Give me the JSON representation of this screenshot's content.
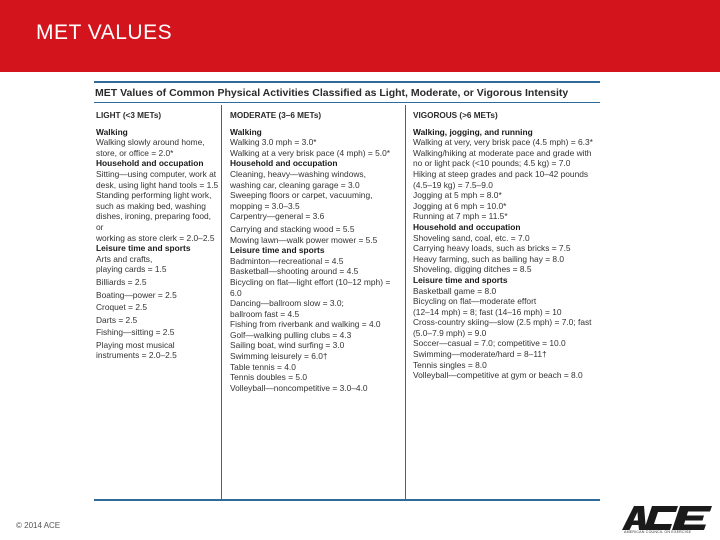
{
  "slide": {
    "title": "MET VALUES",
    "copyright": "© 2014 ACE",
    "accent_color": "#d3141d",
    "table_rule_color": "#2f6b9a"
  },
  "logo": {
    "text": "ACE",
    "tagline": "AMERICAN COUNCIL ON EXERCISE"
  },
  "table": {
    "caption": "MET Values of Common Physical Activities Classified as Light, Moderate, or Vigorous Intensity",
    "light": {
      "header": "LIGHT (<3 METs)",
      "lines": [
        {
          "kind": "section",
          "text": "Walking"
        },
        {
          "kind": "entry",
          "text": "Walking slowly around home,"
        },
        {
          "kind": "entry",
          "text": "store, or office = 2.0*"
        },
        {
          "kind": "section",
          "text": "Household and occupation"
        },
        {
          "kind": "entry",
          "text": "Sitting—using computer, work at"
        },
        {
          "kind": "entry",
          "text": "desk, using light hand tools = 1.5"
        },
        {
          "kind": "entry",
          "text": "Standing performing light work,"
        },
        {
          "kind": "entry",
          "text": "such as making bed, washing"
        },
        {
          "kind": "entry",
          "text": "dishes, ironing, preparing food, or"
        },
        {
          "kind": "entry",
          "text": "working as store clerk = 2.0–2.5"
        },
        {
          "kind": "section",
          "text": "Leisure time and sports"
        },
        {
          "kind": "entry",
          "text": "Arts and crafts,"
        },
        {
          "kind": "entry",
          "text": "playing cards = 1.5"
        },
        {
          "kind": "gap",
          "text": ""
        },
        {
          "kind": "entry",
          "text": "Billiards = 2.5"
        },
        {
          "kind": "gap",
          "text": ""
        },
        {
          "kind": "entry",
          "text": "Boating—power = 2.5"
        },
        {
          "kind": "gap",
          "text": ""
        },
        {
          "kind": "entry",
          "text": "Croquet = 2.5"
        },
        {
          "kind": "gap",
          "text": ""
        },
        {
          "kind": "entry",
          "text": "Darts = 2.5"
        },
        {
          "kind": "gap",
          "text": ""
        },
        {
          "kind": "entry",
          "text": "Fishing—sitting = 2.5"
        },
        {
          "kind": "gap",
          "text": ""
        },
        {
          "kind": "entry",
          "text": "Playing most musical"
        },
        {
          "kind": "entry",
          "text": "instruments = 2.0–2.5"
        }
      ]
    },
    "moderate": {
      "header": "MODERATE (3–6 METs)",
      "lines": [
        {
          "kind": "section",
          "text": "Walking"
        },
        {
          "kind": "entry",
          "text": "Walking 3.0 mph = 3.0*"
        },
        {
          "kind": "entry",
          "text": "Walking at a very brisk pace (4 mph) = 5.0*"
        },
        {
          "kind": "section",
          "text": "Household and occupation"
        },
        {
          "kind": "entry",
          "text": "Cleaning, heavy—washing windows,"
        },
        {
          "kind": "entry",
          "text": "washing car, cleaning garage = 3.0"
        },
        {
          "kind": "entry",
          "text": "Sweeping floors or carpet, vacuuming,"
        },
        {
          "kind": "entry",
          "text": "mopping = 3.0–3.5"
        },
        {
          "kind": "entry",
          "text": "Carpentry—general = 3.6"
        },
        {
          "kind": "gap",
          "text": ""
        },
        {
          "kind": "entry",
          "text": "Carrying and stacking wood = 5.5"
        },
        {
          "kind": "entry",
          "text": "Mowing lawn—walk power mower = 5.5"
        },
        {
          "kind": "section",
          "text": "Leisure time and sports"
        },
        {
          "kind": "entry",
          "text": "Badminton—recreational = 4.5"
        },
        {
          "kind": "entry",
          "text": "Basketball—shooting around = 4.5"
        },
        {
          "kind": "entry",
          "text": "Bicycling on flat—light effort (10–12 mph) = 6.0"
        },
        {
          "kind": "entry",
          "text": "Dancing—ballroom slow = 3.0;"
        },
        {
          "kind": "entry",
          "text": "ballroom fast = 4.5"
        },
        {
          "kind": "entry",
          "text": "Fishing from riverbank and walking = 4.0"
        },
        {
          "kind": "entry",
          "text": "Golf—walking pulling clubs = 4.3"
        },
        {
          "kind": "entry",
          "text": "Sailing boat, wind surfing = 3.0"
        },
        {
          "kind": "entry",
          "text": "Swimming leisurely = 6.0†"
        },
        {
          "kind": "entry",
          "text": "Table tennis = 4.0"
        },
        {
          "kind": "entry",
          "text": "Tennis doubles = 5.0"
        },
        {
          "kind": "entry",
          "text": "Volleyball—noncompetitive = 3.0–4.0"
        }
      ]
    },
    "vigorous": {
      "header": "VIGOROUS (>6 METs)",
      "lines": [
        {
          "kind": "section",
          "text": "Walking, jogging, and running"
        },
        {
          "kind": "entry",
          "text": "Walking at very, very brisk pace (4.5 mph) = 6.3*"
        },
        {
          "kind": "entry",
          "text": "Walking/hiking at moderate pace and grade with"
        },
        {
          "kind": "entry",
          "text": "no or light pack (<10 pounds; 4.5 kg) = 7.0"
        },
        {
          "kind": "entry",
          "text": "Hiking at steep grades and pack 10–42 pounds"
        },
        {
          "kind": "entry",
          "text": "(4.5–19 kg) = 7.5–9.0"
        },
        {
          "kind": "entry",
          "text": "Jogging at 5 mph = 8.0*"
        },
        {
          "kind": "entry",
          "text": "Jogging at 6 mph = 10.0*"
        },
        {
          "kind": "entry",
          "text": "Running at 7 mph = 11.5*"
        },
        {
          "kind": "section",
          "text": "Household and occupation"
        },
        {
          "kind": "entry",
          "text": "Shoveling sand, coal, etc. = 7.0"
        },
        {
          "kind": "entry",
          "text": "Carrying heavy loads, such as bricks = 7.5"
        },
        {
          "kind": "entry",
          "text": "Heavy farming, such as bailing hay = 8.0"
        },
        {
          "kind": "entry",
          "text": "Shoveling, digging ditches = 8.5"
        },
        {
          "kind": "section",
          "text": "Leisure time and sports"
        },
        {
          "kind": "entry",
          "text": "Basketball game = 8.0"
        },
        {
          "kind": "entry",
          "text": "Bicycling on flat—moderate effort"
        },
        {
          "kind": "entry",
          "text": "(12–14 mph) = 8; fast (14–16 mph) = 10"
        },
        {
          "kind": "entry",
          "text": "Cross-country skiing—slow (2.5 mph) = 7.0; fast"
        },
        {
          "kind": "entry",
          "text": "(5.0–7.9 mph) = 9.0"
        },
        {
          "kind": "entry",
          "text": "Soccer—casual = 7.0; competitive = 10.0"
        },
        {
          "kind": "entry",
          "text": "Swimming—moderate/hard = 8–11†"
        },
        {
          "kind": "entry",
          "text": "Tennis singles = 8.0"
        },
        {
          "kind": "entry",
          "text": "Volleyball—competitive at gym or beach = 8.0"
        }
      ]
    }
  }
}
